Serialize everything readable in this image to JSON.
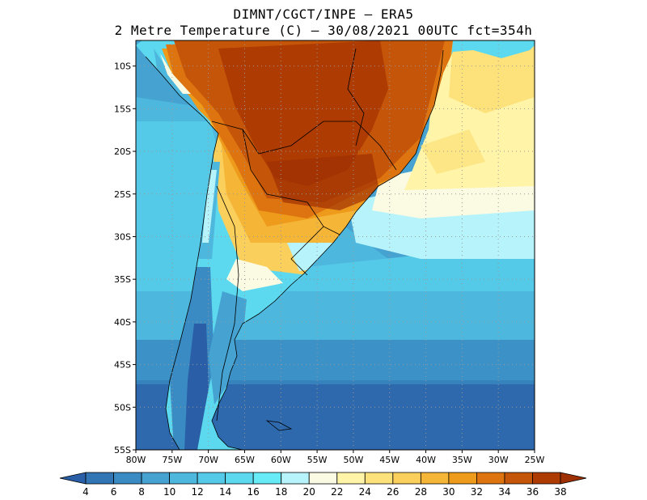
{
  "header": {
    "line1": "DIMNT/CGCT/INPE –  ERA5",
    "line2": "2 Metre Temperature (C) –  30/08/2021 00UTC fct=354h"
  },
  "map": {
    "lon_range": [
      -80,
      -25
    ],
    "lat_range": [
      -55,
      -7
    ],
    "grid": "dotted",
    "lat_labels": [
      "10S",
      "15S",
      "20S",
      "25S",
      "30S",
      "35S",
      "40S",
      "45S",
      "50S",
      "55S"
    ],
    "lon_labels": [
      "80W",
      "75W",
      "70W",
      "65W",
      "60W",
      "55W",
      "50W",
      "45W",
      "40W",
      "35W",
      "30W",
      "25W"
    ]
  },
  "colorbar": {
    "labels": [
      "4",
      "6",
      "8",
      "10",
      "12",
      "14",
      "16",
      "18",
      "20",
      "22",
      "24",
      "26",
      "28",
      "30",
      "32",
      "34",
      "36",
      "38"
    ],
    "colors": [
      "#2a5fa7",
      "#3275b4",
      "#3a8bc3",
      "#45a2d1",
      "#4db7dd",
      "#55c9e8",
      "#5cd9ef",
      "#66ebf7",
      "#b6f3fb",
      "#fbfbe3",
      "#fff4a8",
      "#fde27c",
      "#fbcf5c",
      "#f5b537",
      "#ee9a1b",
      "#dd7410",
      "#c55508",
      "#ad3b02",
      "#9e3003"
    ]
  }
}
